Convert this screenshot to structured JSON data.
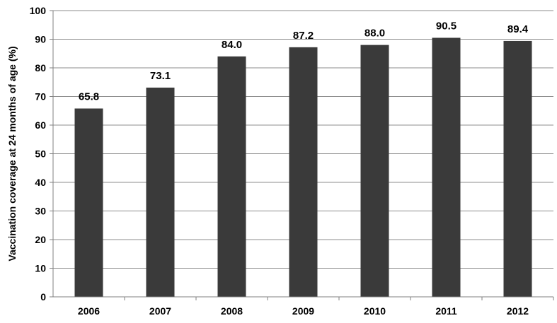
{
  "chart_data": {
    "type": "bar",
    "title": "",
    "xlabel": "",
    "ylabel": "Vaccination coverage at 24 months of age (%)",
    "categories": [
      "2006",
      "2007",
      "2008",
      "2009",
      "2010",
      "2011",
      "2012"
    ],
    "values": [
      65.8,
      73.1,
      84.0,
      87.2,
      88.0,
      90.5,
      89.4
    ],
    "value_labels": [
      "65.8",
      "73.1",
      "84.0",
      "87.2",
      "88.0",
      "90.5",
      "89.4"
    ],
    "ylim": [
      0,
      100
    ],
    "yticks": [
      "0",
      "10",
      "20",
      "30",
      "40",
      "50",
      "60",
      "70",
      "80",
      "90",
      "100"
    ],
    "grid": true,
    "legend": "none",
    "colors": {
      "bar": "#3a3a3a",
      "grid": "#8c8c8c",
      "axis": "#808080"
    }
  }
}
